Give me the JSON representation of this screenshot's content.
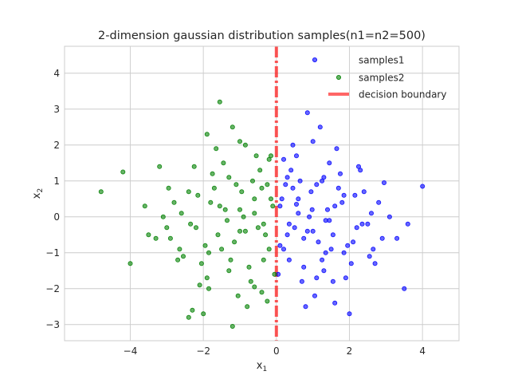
{
  "chart_data": {
    "type": "scatter",
    "title": "2-dimension gaussian distribution samples(n1=n2=500)",
    "xlabel": {
      "base": "x",
      "sub": "1"
    },
    "ylabel": {
      "base": "x",
      "sub": "2"
    },
    "xlim": [
      -5.8,
      5.0
    ],
    "ylim": [
      -3.45,
      4.75
    ],
    "xticks": [
      -4,
      -2,
      0,
      2,
      4
    ],
    "yticks": [
      -3,
      -2,
      -1,
      0,
      1,
      2,
      3,
      4
    ],
    "xtick_labels": [
      "−4",
      "−2",
      "0",
      "2",
      "4"
    ],
    "ytick_labels": [
      "−3",
      "−2",
      "−1",
      "0",
      "1",
      "2",
      "3",
      "4"
    ],
    "grid": true,
    "legend_position": "top-right",
    "series": [
      {
        "name": "samples1",
        "color": "#0000ff",
        "n": 500,
        "x": [
          0.98,
          1.55,
          0.45,
          2.2,
          1.3,
          0.2,
          1.8,
          0.75,
          2.6,
          1.1,
          0.35,
          1.95,
          1.45,
          0.6,
          2.9,
          0.1,
          1.25,
          2.4,
          0.85,
          1.65,
          0.05,
          3.1,
          1.0,
          1.85,
          0.4,
          2.15,
          1.35,
          0.7,
          2.65,
          0.25,
          1.6,
          1.15,
          0.55,
          2.05,
          0.9,
          3.5,
          0.3,
          1.75,
          2.35,
          1.05,
          0.15,
          1.5,
          2.8,
          0.65,
          1.3,
          0.95,
          2.25,
          0.5,
          1.9,
          0.2,
          3.3,
          1.4,
          0.8,
          2.55,
          1.2,
          0.35,
          1.7,
          2.0,
          0.6,
          1.0,
          4.0,
          3.6,
          2.7,
          1.55,
          0.45,
          1.25,
          2.1,
          0.75,
          1.85,
          0.1,
          2.95,
          1.45,
          0.55,
          2.3,
          1.1,
          0.3,
          1.6,
          2.5,
          0.85,
          1.35
        ],
        "y": [
          0.2,
          -0.5,
          0.8,
          -0.3,
          1.1,
          -0.9,
          0.4,
          -1.4,
          0.1,
          0.9,
          -0.2,
          -0.8,
          1.5,
          0.5,
          -0.6,
          0.3,
          -1.2,
          0.7,
          -0.4,
          1.9,
          -1.6,
          0.0,
          2.1,
          -1.0,
          1.3,
          0.6,
          -0.1,
          -1.8,
          -0.9,
          0.9,
          0.3,
          -0.7,
          1.7,
          -1.3,
          0.0,
          -2.0,
          -0.5,
          1.2,
          -0.2,
          -2.2,
          0.5,
          -0.9,
          0.4,
          1.0,
          -1.5,
          0.7,
          1.4,
          -0.3,
          -1.7,
          1.6,
          -0.6,
          0.2,
          -2.5,
          -1.1,
          2.5,
          -1.2,
          0.8,
          -2.7,
          0.1,
          -0.4,
          0.85,
          -0.2,
          -1.3,
          -1.8,
          2.0,
          1.0,
          -0.7,
          -0.6,
          0.6,
          -0.8,
          0.95,
          -0.1,
          0.35,
          1.3,
          -1.7,
          1.1,
          -2.4,
          -0.2,
          2.9,
          -1.0
        ]
      },
      {
        "name": "samples2",
        "color": "#008000",
        "n": 500,
        "x": [
          -1.0,
          -1.6,
          -0.4,
          -2.2,
          -1.3,
          -0.2,
          -1.8,
          -0.75,
          -2.6,
          -1.1,
          -0.35,
          -1.95,
          -1.45,
          -0.6,
          -2.9,
          -0.1,
          -1.25,
          -2.4,
          -0.85,
          -1.65,
          -0.05,
          -3.1,
          -1.0,
          -1.85,
          -0.45,
          -2.15,
          -1.35,
          -0.7,
          -2.65,
          -0.25,
          -1.55,
          -1.15,
          -0.55,
          -2.05,
          -0.9,
          -3.5,
          -0.3,
          -1.75,
          -2.35,
          -1.05,
          -0.15,
          -1.5,
          -2.8,
          -0.65,
          -1.3,
          -0.95,
          -2.25,
          -0.5,
          -1.9,
          -0.2,
          -3.3,
          -1.4,
          -0.8,
          -2.55,
          -1.2,
          -0.35,
          -1.7,
          -2.0,
          -0.6,
          -1.0,
          -4.8,
          -4.2,
          -4.0,
          -3.0,
          -2.95,
          -1.9,
          -1.85,
          -2.1,
          -0.4,
          -0.6,
          -3.2,
          -2.7,
          -0.25,
          -1.55,
          -2.3,
          -0.85,
          -1.2,
          -3.6,
          -2.4,
          -0.15
        ],
        "y": [
          0.2,
          -0.5,
          0.8,
          -0.3,
          1.1,
          -0.9,
          0.4,
          -1.4,
          0.1,
          0.9,
          -0.2,
          -0.8,
          1.5,
          0.5,
          -0.6,
          0.3,
          -1.2,
          0.7,
          -0.4,
          1.9,
          -1.6,
          0.0,
          2.1,
          -1.0,
          1.3,
          0.6,
          -0.1,
          -1.8,
          -0.9,
          0.9,
          0.3,
          -0.7,
          1.7,
          -1.3,
          0.0,
          -0.5,
          -0.5,
          1.2,
          -0.2,
          -2.2,
          0.5,
          -0.9,
          0.4,
          1.0,
          -1.5,
          0.7,
          1.4,
          -0.3,
          -1.7,
          1.6,
          -0.6,
          0.2,
          -2.5,
          -1.1,
          2.5,
          -1.2,
          0.8,
          -2.7,
          0.1,
          -0.4,
          0.7,
          1.25,
          -1.3,
          -0.3,
          0.8,
          2.3,
          -2.0,
          -1.9,
          -2.1,
          -1.95,
          1.4,
          -1.2,
          -2.35,
          3.2,
          -2.6,
          2.0,
          -3.05,
          0.3,
          -2.8,
          1.7
        ]
      }
    ],
    "decision_boundary": {
      "name": "decision boundary",
      "x": 0,
      "color": "#ff0000"
    }
  }
}
